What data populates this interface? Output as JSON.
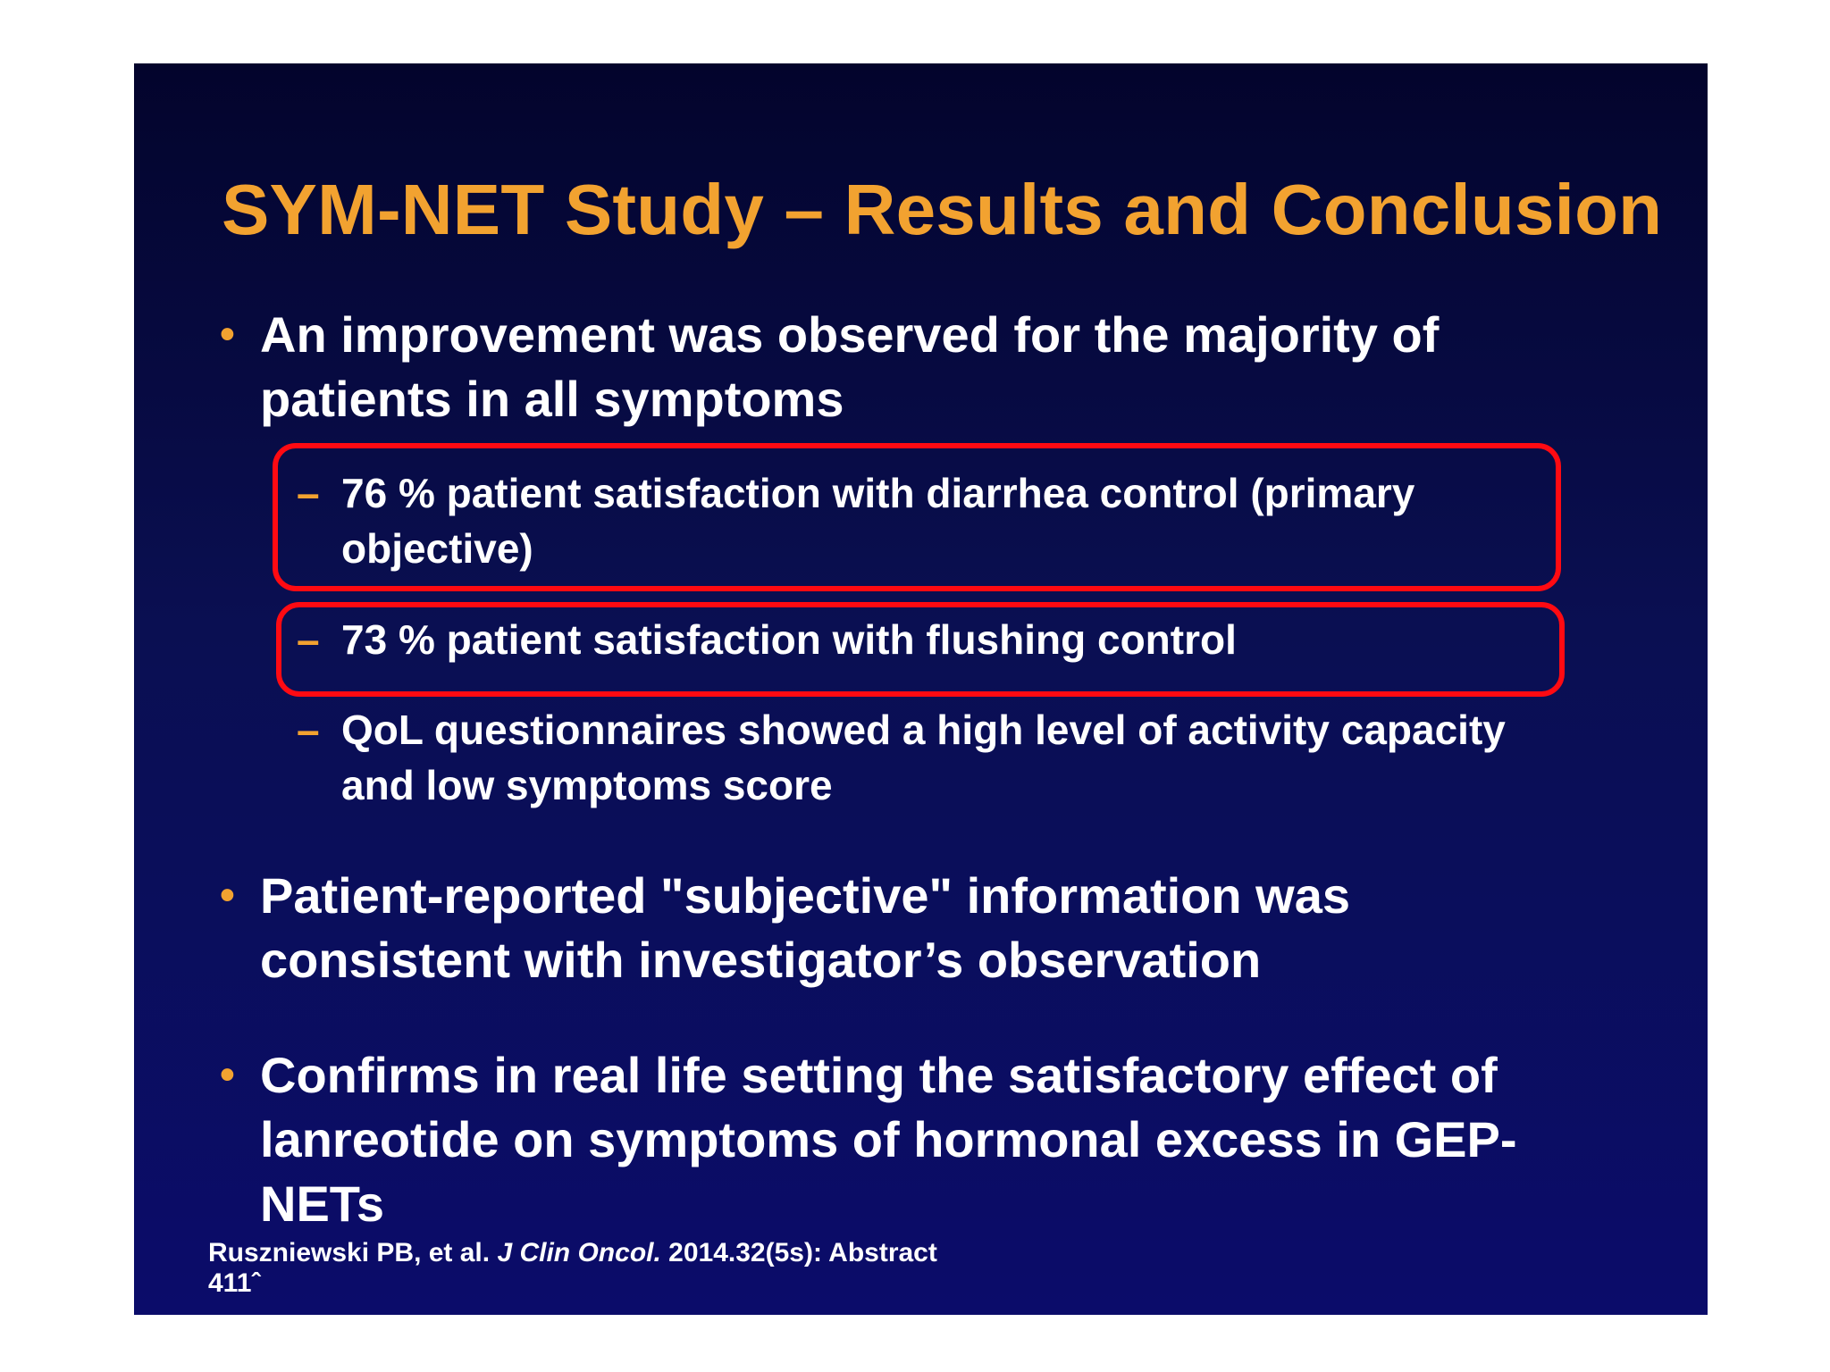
{
  "slide": {
    "title": "SYM-NET Study – Results and Conclusion",
    "bullet_glyph": "•",
    "dash_glyph": "–",
    "bullets": [
      {
        "text": "An improvement was observed for the majority of patients in all symptoms"
      },
      {
        "text": "Patient-reported \"subjective\" information was consistent with investigator’s observation"
      },
      {
        "text": "Confirms in real life setting the satisfactory effect of lanreotide on symptoms of hormonal excess in GEP- NETs"
      }
    ],
    "sub_bullets": [
      {
        "text": "76 % patient satisfaction with diarrhea control (primary objective)",
        "highlighted": true
      },
      {
        "text": "73 % patient satisfaction with flushing control",
        "highlighted": true
      },
      {
        "text": "QoL questionnaires showed a high level of activity capacity and low symptoms score",
        "highlighted": false
      }
    ],
    "citation": {
      "authors": "Ruszniewski PB, et al.",
      "journal": "J Clin Oncol.",
      "details": "2014.32(5s): Abstract",
      "abstract_number": "411ˆ"
    }
  },
  "colors": {
    "title": "#f2a230",
    "text": "#ffffff",
    "highlight_border": "#ff0a12",
    "background_top": "#03042c",
    "background_bottom": "#0b0c6a"
  }
}
